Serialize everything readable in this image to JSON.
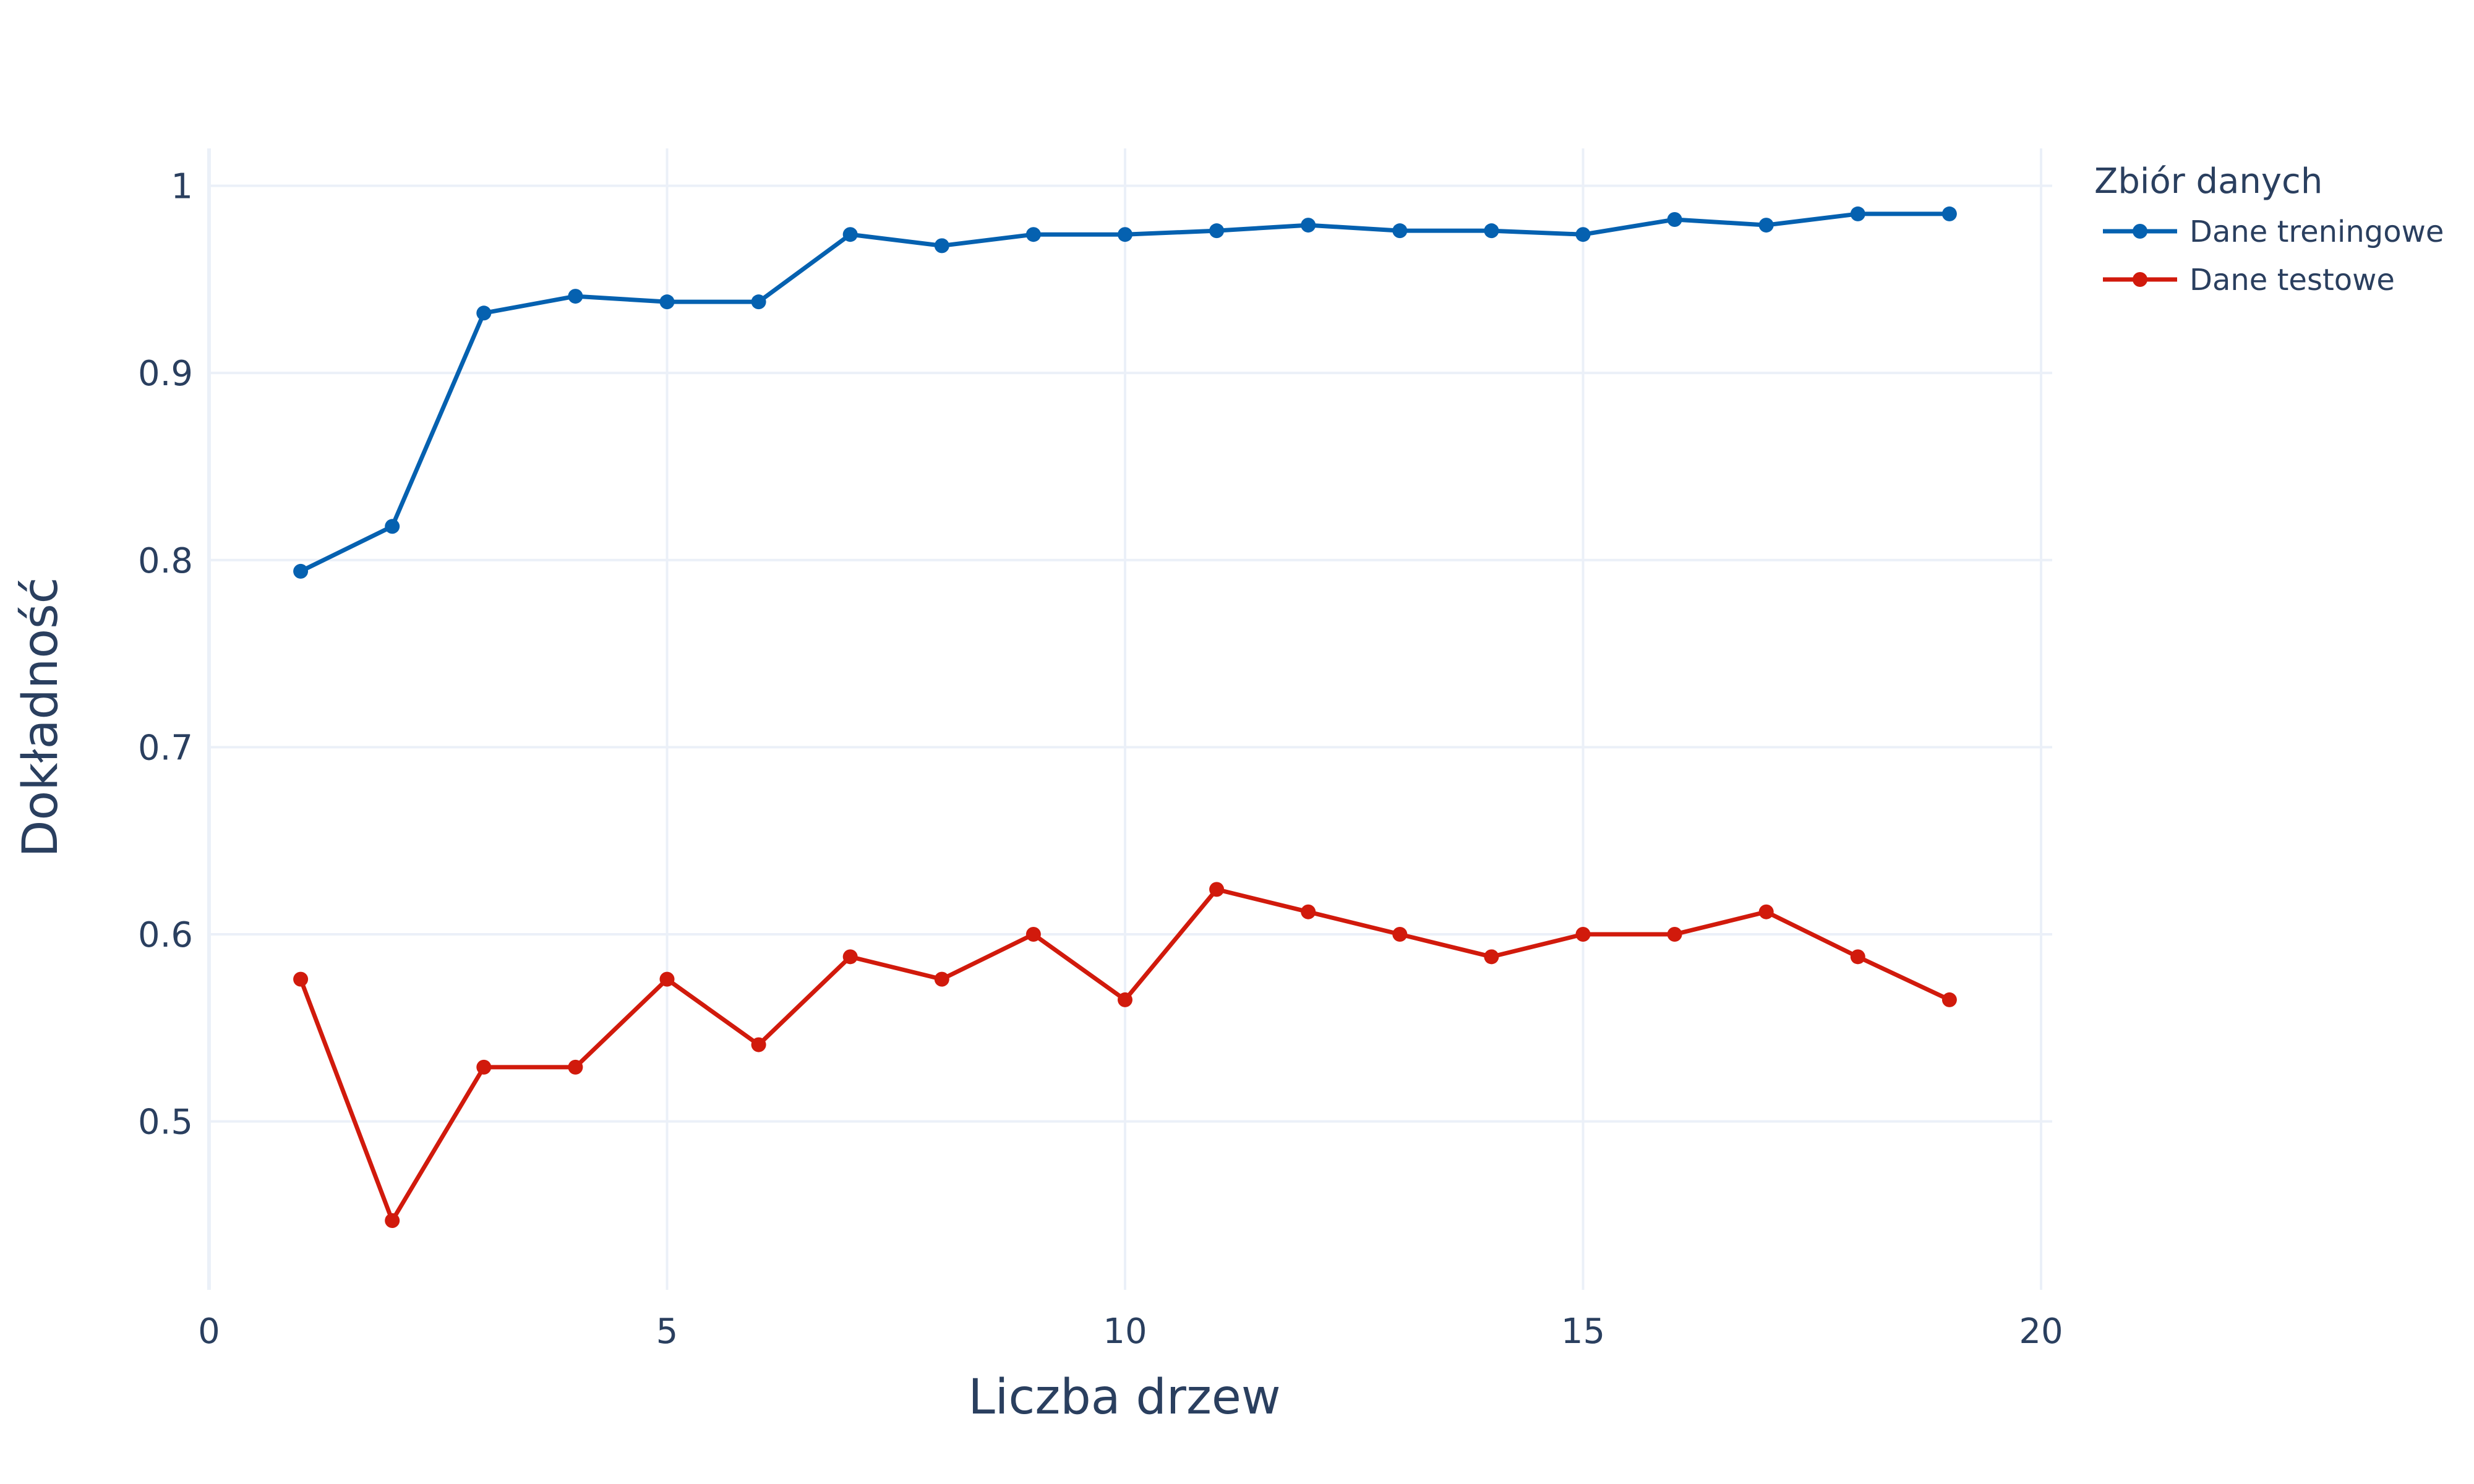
{
  "chart_data": {
    "type": "line",
    "xlabel": "Liczba drzew",
    "ylabel": "Dokładność",
    "xlim": [
      0,
      20
    ],
    "ylim": [
      0.41,
      1.02
    ],
    "xticks": [
      0,
      5,
      10,
      15,
      20
    ],
    "yticks": [
      0.5,
      0.6,
      0.7,
      0.8,
      0.9,
      1
    ],
    "ytick_labels": [
      "0.5",
      "0.6",
      "0.7",
      "0.8",
      "0.9",
      "1"
    ],
    "grid": true,
    "legend": {
      "title": "Zbiór danych",
      "placement": "top-right, outside plot"
    },
    "x": [
      1,
      2,
      3,
      4,
      5,
      6,
      7,
      8,
      9,
      10,
      11,
      12,
      13,
      14,
      15,
      16,
      17,
      18,
      19
    ],
    "series": [
      {
        "name": "Dane treningowe",
        "color": "#0561b0",
        "values": [
          0.794,
          0.818,
          0.932,
          0.941,
          0.938,
          0.938,
          0.974,
          0.968,
          0.974,
          0.974,
          0.976,
          0.979,
          0.976,
          0.976,
          0.974,
          0.982,
          0.979,
          0.985,
          0.985
        ]
      },
      {
        "name": "Dane testowe",
        "color": "#d11a0c",
        "values": [
          0.576,
          0.447,
          0.529,
          0.529,
          0.576,
          0.541,
          0.588,
          0.576,
          0.6,
          0.565,
          0.624,
          0.612,
          0.6,
          0.588,
          0.6,
          0.6,
          0.612,
          0.588,
          0.565
        ]
      }
    ]
  }
}
